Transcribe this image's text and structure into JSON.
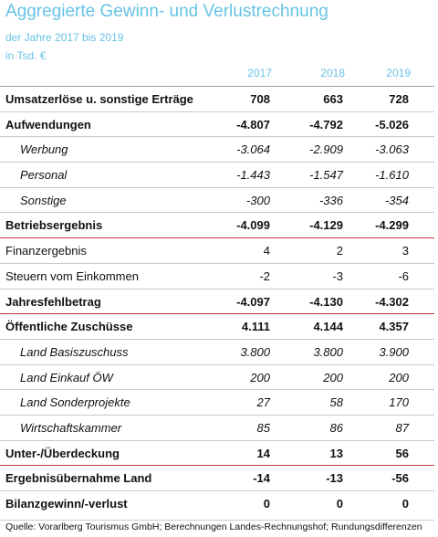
{
  "header": {
    "title": "Aggregierte Gewinn- und Verlustrechnung",
    "subtitle_years": "der Jahre 2017 bis 2019",
    "subtitle_unit": "in Tsd. €"
  },
  "columns": [
    "2017",
    "2018",
    "2019"
  ],
  "rows": [
    {
      "label": "Umsatzerlöse u. sonstige Erträge",
      "values": [
        "708",
        "663",
        "728"
      ],
      "style": "bold"
    },
    {
      "label": "Aufwendungen",
      "values": [
        "-4.807",
        "-4.792",
        "-5.026"
      ],
      "style": "bold"
    },
    {
      "label": "Werbung",
      "values": [
        "-3.064",
        "-2.909",
        "-3.063"
      ],
      "style": "italic"
    },
    {
      "label": "Personal",
      "values": [
        "-1.443",
        "-1.547",
        "-1.610"
      ],
      "style": "italic"
    },
    {
      "label": "Sonstige",
      "values": [
        "-300",
        "-336",
        "-354"
      ],
      "style": "italic"
    },
    {
      "label": "Betriebsergebnis",
      "values": [
        "-4.099",
        "-4.129",
        "-4.299"
      ],
      "style": "bold"
    },
    {
      "label": "Finanzergebnis",
      "values": [
        "4",
        "2",
        "3"
      ],
      "style": "normal"
    },
    {
      "label": "Steuern vom Einkommen",
      "values": [
        "-2",
        "-3",
        "-6"
      ],
      "style": "normal"
    },
    {
      "label": "Jahresfehlbetrag",
      "values": [
        "-4.097",
        "-4.130",
        "-4.302"
      ],
      "style": "bold"
    },
    {
      "label": "Öffentliche Zuschüsse",
      "values": [
        "4.111",
        "4.144",
        "4.357"
      ],
      "style": "bold"
    },
    {
      "label": "Land Basiszuschuss",
      "values": [
        "3.800",
        "3.800",
        "3.900"
      ],
      "style": "italic"
    },
    {
      "label": "Land Einkauf ÖW",
      "values": [
        "200",
        "200",
        "200"
      ],
      "style": "italic"
    },
    {
      "label": "Land Sonderprojekte",
      "values": [
        "27",
        "58",
        "170"
      ],
      "style": "italic"
    },
    {
      "label": "Wirtschaftskammer",
      "values": [
        "85",
        "86",
        "87"
      ],
      "style": "italic"
    },
    {
      "label": "Unter-/Überdeckung",
      "values": [
        "14",
        "13",
        "56"
      ],
      "style": "bold"
    },
    {
      "label": "Ergebnisübernahme Land",
      "values": [
        "-14",
        "-13",
        "-56"
      ],
      "style": "bold"
    },
    {
      "label": "Bilanzgewinn/-verlust",
      "values": [
        "0",
        "0",
        "0"
      ],
      "style": "bold"
    }
  ],
  "footer": {
    "source": "Quelle: Vorarlberg Tourismus GmbH; Berechnungen Landes-Rechnungshof; Rundungsdifferenzen"
  },
  "colors": {
    "accent": "#67c3e6",
    "separator_red": "#c0344a"
  }
}
